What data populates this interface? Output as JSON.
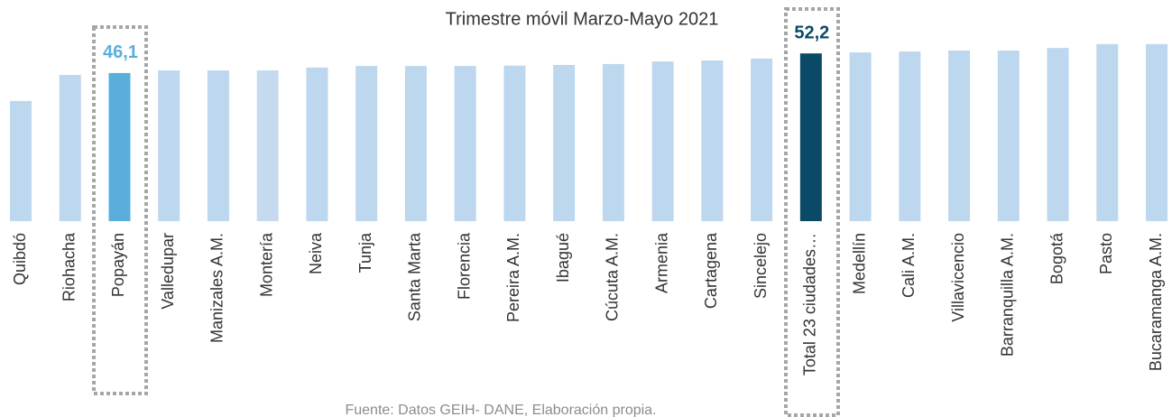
{
  "chart_data": {
    "type": "bar",
    "subtitle": "Trimestre móvil Marzo-Mayo 2021",
    "source": "Fuente: Datos GEIH- DANE, Elaboración propia.",
    "categories": [
      "Quibdó",
      "Riohacha",
      "Popayán",
      "Valledupar",
      "Manizales A.M.",
      "Montería",
      "Neiva",
      "Tunja",
      "Santa Marta",
      "Florencia",
      "Pereira A.M.",
      "Ibagué",
      "Cúcuta A.M.",
      "Armenia",
      "Cartagena",
      "Sincelejo",
      "Total 23 ciudades…",
      "Medellín",
      "Cali A.M.",
      "Villavicencio",
      "Barranquilla A.M.",
      "Bogotá",
      "Pasto",
      "Bucaramanga A.M."
    ],
    "values": [
      37.4,
      45.5,
      46.1,
      46.9,
      46.9,
      46.9,
      47.8,
      48.3,
      48.3,
      48.3,
      48.4,
      48.6,
      48.9,
      49.7,
      50.0,
      50.6,
      52.2,
      52.5,
      52.8,
      53.1,
      53.1,
      53.9,
      55.1,
      55.1
    ],
    "value_labels": [
      null,
      null,
      "46,1",
      null,
      null,
      null,
      null,
      null,
      null,
      null,
      null,
      null,
      null,
      null,
      null,
      null,
      "52,2",
      null,
      null,
      null,
      null,
      null,
      null,
      null
    ],
    "colors": [
      "#bdd7ee",
      "#bdd7ee",
      "#5aaedc",
      "#bdd7ee",
      "#bdd7ee",
      "#c5daee",
      "#bdd7ee",
      "#bdd7ee",
      "#bdd7ee",
      "#bdd7ee",
      "#bdd7ee",
      "#bdd7ee",
      "#bdd7ee",
      "#bdd7ee",
      "#bdd7ee",
      "#bdd7ee",
      "#0b4a66",
      "#bdd7ee",
      "#bdd7ee",
      "#bdd7ee",
      "#bdd7ee",
      "#bdd7ee",
      "#bdd7ee",
      "#bdd7ee"
    ]
  }
}
